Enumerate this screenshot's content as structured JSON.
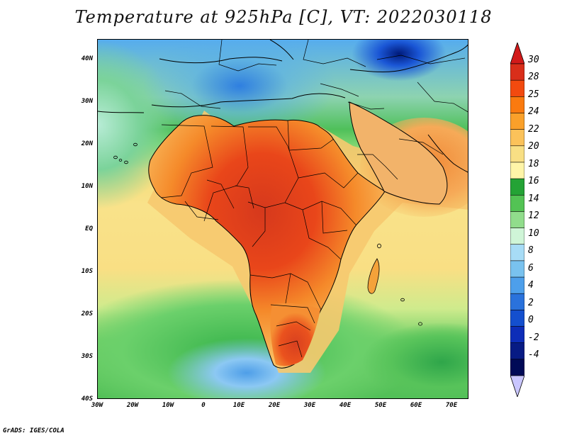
{
  "title": "Temperature at 925hPa [C], VT: 2022030118",
  "map": {
    "variable": "Temperature",
    "level": "925hPa",
    "unit": "C",
    "valid_time": "2022030118",
    "lat_ticks": [
      "40N",
      "30N",
      "20N",
      "10N",
      "EQ",
      "10S",
      "20S",
      "30S",
      "40S"
    ],
    "lon_ticks": [
      "30W",
      "20W",
      "10W",
      "0",
      "10E",
      "20E",
      "30E",
      "40E",
      "50E",
      "60E",
      "70E"
    ]
  },
  "colorbar": {
    "labels": [
      "30",
      "28",
      "25",
      "24",
      "22",
      "20",
      "18",
      "16",
      "14",
      "12",
      "10",
      "8",
      "6",
      "4",
      "2",
      "0",
      "-2",
      "-4"
    ],
    "colors": [
      "#d92e1a",
      "#f24a0f",
      "#fa7a0f",
      "#faa02a",
      "#fbc25a",
      "#f8df84",
      "#fff5a8",
      "#24a335",
      "#53c354",
      "#91dd8c",
      "#cff5d7",
      "#a7dcf6",
      "#79c2ef",
      "#4d9feb",
      "#2a72dc",
      "#144fce",
      "#0d2db8",
      "#071b84",
      "#000a57"
    ],
    "top_arrow_color": "#d21a1a",
    "bottom_arrow_color": "#c9c6ff"
  },
  "footer": "GrADS: IGES/COLA"
}
